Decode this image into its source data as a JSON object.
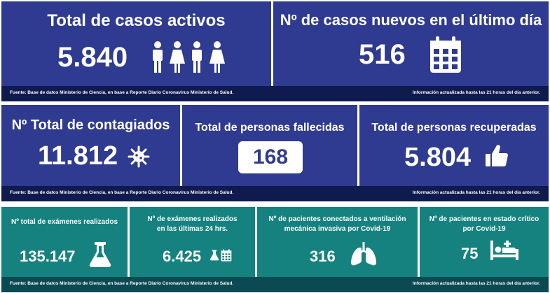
{
  "row1": {
    "active": {
      "title": "Total de casos activos",
      "value": "5.840"
    },
    "new_cases": {
      "title": "Nº de casos nuevos en el último día",
      "value": "516"
    },
    "footer_left": "Fuente: Base de datos Ministerio de Ciencia, en base a Reporte Diario Coronavirus Ministerio de Salud.",
    "footer_right": "Información actualizada hasta las 21 horas  del día anterior."
  },
  "row2": {
    "total": {
      "title": "Nº Total de contagiados",
      "value": "11.812"
    },
    "deaths": {
      "title": "Total de personas fallecidas",
      "value": "168"
    },
    "recovered": {
      "title": "Total de personas recuperadas",
      "value": "5.804"
    },
    "footer_left": "Fuente: Base de datos Ministerio de Ciencia, en base a Reporte Diario Coronavirus Ministerio de Salud.",
    "footer_right": "Información actualizada hasta las 21 horas  del día anterior."
  },
  "row3": {
    "exams_total": {
      "title": "Nº total de exámenes realizados",
      "value": "135.147"
    },
    "exams_24h": {
      "title_line1": "Nº de exámenes realizados",
      "title_line2": "en las últimas 24 hrs.",
      "value": "6.425"
    },
    "ventilation": {
      "title_line1": "Nº de pacientes conectados a ventilación",
      "title_line2": "mecánica invasiva por Covid-19",
      "value": "316"
    },
    "critical": {
      "title_line1": "Nº de pacientes en estado crítico",
      "title_line2": "por Covid-19",
      "value": "75"
    },
    "footer_left": "Fuente: Base de datos Ministerio de Ciencia, en base a Reporte Diario Coronavirus Ministerio de Salud.",
    "footer_right": "Información actualizada hasta las 21 horas  del día anterior."
  },
  "icons": {
    "people": "people-icon",
    "calendar": "calendar-icon",
    "virus": "virus-icon",
    "thumbs_up": "thumbs-up-icon",
    "flask": "flask-icon",
    "lungs": "lungs-icon",
    "hospital_bed": "hospital-bed-icon"
  },
  "colors": {
    "blue": "#2f3a91",
    "teal": "#15827f",
    "footer_dark": "#0f1a4e"
  }
}
